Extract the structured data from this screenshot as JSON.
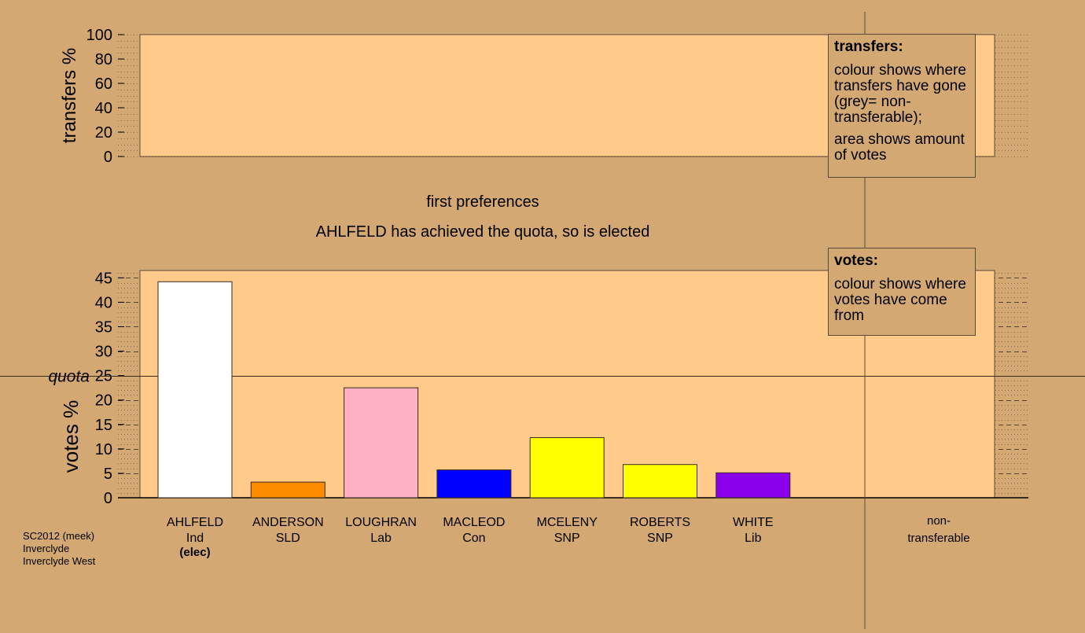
{
  "chart_data": [
    {
      "type": "area",
      "ylabel": "transfers %",
      "ylim": [
        0,
        100
      ],
      "yticks": [
        0,
        20,
        40,
        60,
        80,
        100
      ],
      "grid": "dotted",
      "series": []
    },
    {
      "type": "bar",
      "title": "first preferences",
      "subtitle": "AHLFELD has achieved the quota, so is elected",
      "ylabel": "votes %",
      "ylim": [
        0,
        46.5
      ],
      "yticks": [
        0,
        5,
        10,
        15,
        20,
        25,
        30,
        35,
        40,
        45
      ],
      "grid": "dashed",
      "quota": {
        "label": "quota",
        "value": 25
      },
      "categories": [
        {
          "name": "AHLFELD",
          "party": "Ind",
          "status": "(elec)",
          "value": 44.2,
          "color": "#ffffff"
        },
        {
          "name": "ANDERSON",
          "party": "SLD",
          "status": "",
          "value": 3.2,
          "color": "#ff8c00"
        },
        {
          "name": "LOUGHRAN",
          "party": "Lab",
          "status": "",
          "value": 22.5,
          "color": "#ffb0c4"
        },
        {
          "name": "MACLEOD",
          "party": "Con",
          "status": "",
          "value": 5.7,
          "color": "#0000ff"
        },
        {
          "name": "MCELENY",
          "party": "SNP",
          "status": "",
          "value": 12.3,
          "color": "#ffff00"
        },
        {
          "name": "ROBERTS",
          "party": "SNP",
          "status": "",
          "value": 6.8,
          "color": "#ffff00"
        },
        {
          "name": "WHITE",
          "party": "Lib",
          "status": "",
          "value": 5.1,
          "color": "#8a00ea"
        }
      ],
      "nontransferable": {
        "line1": "non-",
        "line2": "transferable",
        "value": 0
      }
    }
  ],
  "legend": {
    "transfers": {
      "title": "transfers:",
      "para1": "colour shows where transfers have gone (grey= non-transferable);",
      "para2": "area shows amount of votes"
    },
    "votes": {
      "title": "votes:",
      "para1": "colour shows where votes have come from"
    }
  },
  "footer": {
    "line1": "SC2012 (meek)",
    "line2": "Inverclyde",
    "line3": "Inverclyde West"
  },
  "colors": {
    "background": "#d4a873",
    "plot_area": "#ffca8a"
  }
}
